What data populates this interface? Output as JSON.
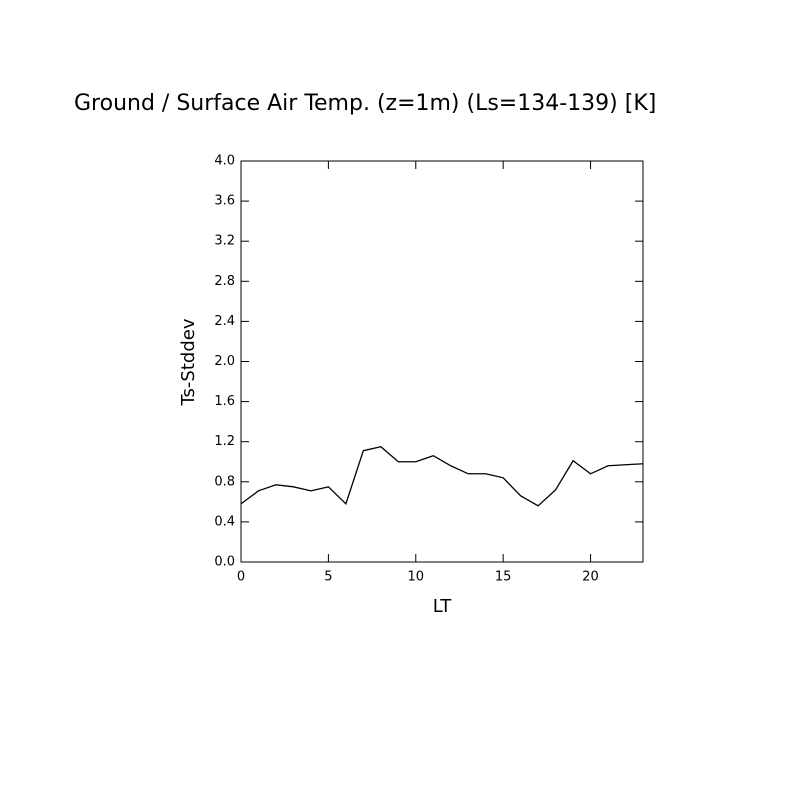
{
  "chart_data": {
    "type": "line",
    "title": "Ground / Surface Air Temp. (z=1m) (Ls=134-139) [K]",
    "x_label": "LT",
    "y_label": "Ts-Stddev",
    "x": [
      0,
      1,
      2,
      3,
      4,
      5,
      6,
      7,
      8,
      9,
      10,
      11,
      12,
      13,
      14,
      15,
      16,
      17,
      18,
      19,
      20,
      21,
      22,
      23
    ],
    "series": [
      {
        "name": "Ts-Stddev",
        "color": "#000000",
        "values": [
          0.58,
          0.71,
          0.77,
          0.75,
          0.71,
          0.75,
          0.58,
          1.11,
          1.15,
          1.0,
          1.0,
          1.06,
          0.96,
          0.88,
          0.88,
          0.84,
          0.66,
          0.56,
          0.72,
          1.01,
          0.88,
          0.96,
          0.97,
          0.98
        ]
      }
    ],
    "xlim": [
      0,
      23
    ],
    "xticks": [
      0,
      5,
      10,
      15,
      20
    ],
    "ylim": [
      0,
      4
    ],
    "yticks": [
      {
        "value": 0,
        "label": "0.0"
      },
      {
        "value": 0.4,
        "label": "0.4"
      },
      {
        "value": 0.8,
        "label": "0.8"
      },
      {
        "value": 1.2,
        "label": "1.2"
      },
      {
        "value": 1.6,
        "label": "1.6"
      },
      {
        "value": 2,
        "label": "2.0"
      },
      {
        "value": 2.4,
        "label": "2.4"
      },
      {
        "value": 2.8,
        "label": "2.8"
      },
      {
        "value": 3.2,
        "label": "3.2"
      },
      {
        "value": 3.6,
        "label": "3.6"
      },
      {
        "value": 4,
        "label": "4.0"
      }
    ]
  }
}
